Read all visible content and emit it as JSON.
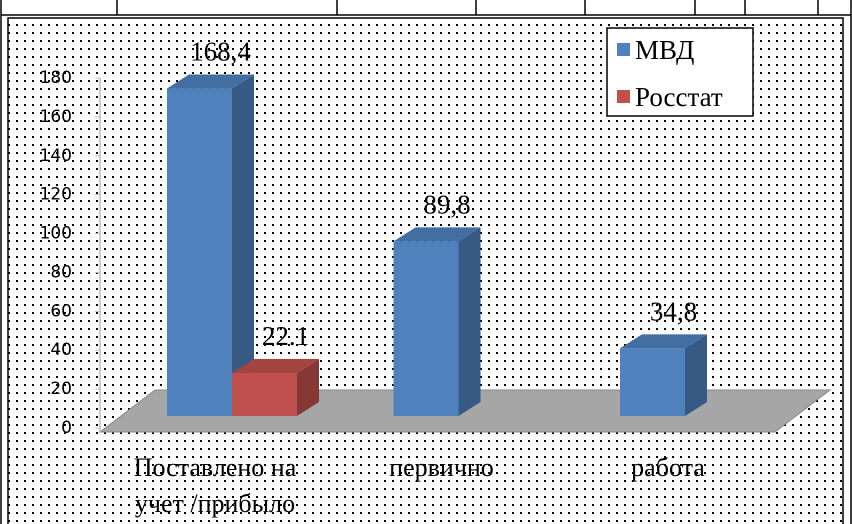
{
  "chart_data": {
    "type": "bar3d",
    "categories": [
      "Поставлено на учет /прибыло",
      "первично",
      "работа"
    ],
    "series": [
      {
        "name": "МВД",
        "color": "#4f81bd",
        "values": [
          168.4,
          89.8,
          34.8
        ],
        "value_labels": [
          "168,4",
          "89,8",
          "34,8"
        ]
      },
      {
        "name": "Росстат",
        "color": "#c0504d",
        "values": [
          22.1,
          null,
          null
        ],
        "value_labels": [
          "22.1",
          null,
          null
        ]
      }
    ],
    "ylim": [
      0,
      180
    ],
    "yticks": [
      0,
      20,
      40,
      60,
      80,
      100,
      120,
      140,
      160,
      180
    ],
    "legend": "top-right"
  }
}
